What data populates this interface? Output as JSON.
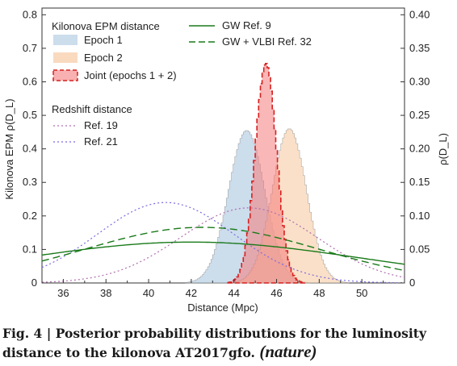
{
  "caption": {
    "text": "Fig. 4 | Posterior probability distributions for the luminosity distance to the kilonova AT2017gfo.",
    "source": "(nature)"
  },
  "chart_data": {
    "type": "area",
    "xlabel": "Distance (Mpc)",
    "ylabel_left": "Kilonova EPM ρ(D_L)",
    "ylabel_right": "ρ(D_L)",
    "xlim": [
      35,
      52
    ],
    "ylim_left": [
      0,
      0.82
    ],
    "ylim_right": [
      0,
      0.41
    ],
    "x_ticks": [
      "36",
      "38",
      "40",
      "42",
      "44",
      "46",
      "48",
      "50"
    ],
    "y_ticks_left": [
      "0",
      "0.1",
      "0.2",
      "0.3",
      "0.4",
      "0.5",
      "0.6",
      "0.7",
      "0.8"
    ],
    "y_ticks_right": [
      "0",
      "0.05",
      "0.10",
      "0.15",
      "0.20",
      "0.25",
      "0.30",
      "0.35",
      "0.40"
    ],
    "legend": {
      "group1_title": "Kilonova EPM distance",
      "group2_title": "Redshift distance"
    },
    "series": [
      {
        "name": "Epoch 1",
        "kind": "hist",
        "axis": "left",
        "mean": 44.6,
        "sd": 0.85,
        "peak": 0.455,
        "color": "#aac6e0"
      },
      {
        "name": "Epoch 2",
        "kind": "hist",
        "axis": "left",
        "mean": 46.6,
        "sd": 0.8,
        "peak": 0.46,
        "color": "#f6cba4"
      },
      {
        "name": "Joint (epochs 1 + 2)",
        "kind": "hist",
        "axis": "left",
        "mean": 45.5,
        "sd": 0.5,
        "peak": 0.655,
        "color": "#f47c7c",
        "edge": "#d62020"
      },
      {
        "name": "Ref. 19",
        "kind": "dotted",
        "axis": "right",
        "mean": 44.7,
        "sd": 3.2,
        "peak": 0.112,
        "color": "#b06fb0"
      },
      {
        "name": "Ref. 21",
        "kind": "dotted",
        "axis": "right",
        "mean": 40.8,
        "sd": 3.2,
        "peak": 0.12,
        "color": "#7b6ae0"
      },
      {
        "name": "GW Ref. 9",
        "kind": "solid",
        "axis": "right",
        "mean": 42.0,
        "sd": 8.0,
        "peak": 0.061,
        "color": "#1a7a1a"
      },
      {
        "name": "GW + VLBI Ref. 32",
        "kind": "dashed",
        "axis": "right",
        "mean": 42.5,
        "sd": 5.5,
        "peak": 0.083,
        "color": "#1a7a1a"
      }
    ]
  }
}
